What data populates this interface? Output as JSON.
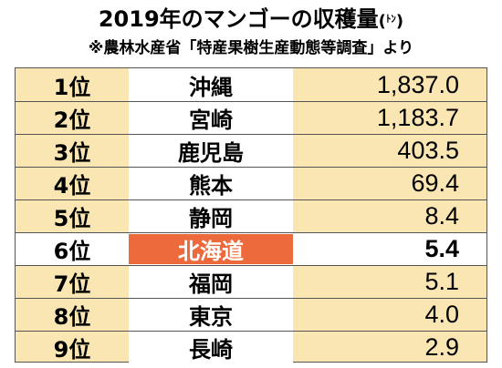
{
  "title": {
    "main": "2019年のマンゴーの収穫量",
    "unit_open": "(",
    "unit": "ﾄﾝ",
    "unit_close": ")"
  },
  "source": "※農林水産省「特産果樹生産動態等調査」より",
  "colors": {
    "row_bg": "#f9e6b3",
    "pref_bg": "#ffffff",
    "highlight_bg": "#ec6a3c",
    "highlight_text": "#ffffff",
    "border": "#555555"
  },
  "rows": [
    {
      "rank": "1位",
      "prefecture": "沖縄",
      "value": "1,837.0"
    },
    {
      "rank": "2位",
      "prefecture": "宮崎",
      "value": "1,183.7"
    },
    {
      "rank": "3位",
      "prefecture": "鹿児島",
      "value": "403.5"
    },
    {
      "rank": "4位",
      "prefecture": "熊本",
      "value": "69.4"
    },
    {
      "rank": "5位",
      "prefecture": "静岡",
      "value": "8.4"
    },
    {
      "rank": "6位",
      "prefecture": "北海道",
      "value": "5.4"
    },
    {
      "rank": "7位",
      "prefecture": "福岡",
      "value": "5.1"
    },
    {
      "rank": "8位",
      "prefecture": "東京",
      "value": "4.0"
    },
    {
      "rank": "9位",
      "prefecture": "長崎",
      "value": "2.9"
    }
  ]
}
